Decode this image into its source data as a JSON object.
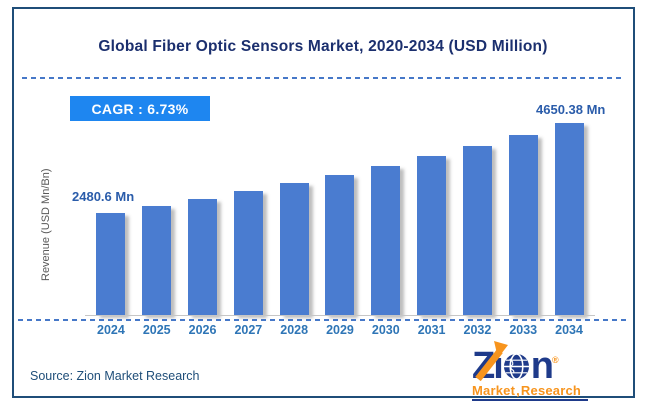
{
  "header": {
    "title": "Global Fiber Optic Sensors Market, 2020-2034 (USD Million)"
  },
  "badge": {
    "label": "CAGR : 6.73%"
  },
  "chart_data": {
    "type": "bar",
    "title": "Global Fiber Optic Sensors Market, 2020-2034 (USD Million)",
    "categories": [
      "2024",
      "2025",
      "2026",
      "2027",
      "2028",
      "2029",
      "2030",
      "2031",
      "2032",
      "2033",
      "2034"
    ],
    "values": [
      2480.6,
      2641.5,
      2812.8,
      2995.2,
      3189.4,
      3396.2,
      3616.5,
      3851.0,
      4100.7,
      4366.6,
      4650.38
    ],
    "value_labels": {
      "first": "2480.6 Mn",
      "last": "4650.38 Mn"
    },
    "cagr": "6.73%",
    "xlabel": "",
    "ylabel": "Revenue (USD Mn/Bn)",
    "ylim": [
      0,
      4650.38
    ],
    "grid": false,
    "legend": "none",
    "bar_color": "#4a7cd0"
  },
  "footer": {
    "source": "Source: Zion Market Research",
    "logo": {
      "letter_z": "Z",
      "letter_i": "i",
      "letter_n": "n",
      "registered": "®",
      "market": "Market",
      "research": "Research",
      "comma": ","
    }
  },
  "colors": {
    "border": "#1f4e79",
    "title_text": "#1b2f6e",
    "badge_bg": "#1e86f0",
    "badge_text": "#ffffff",
    "bar": "#4a7cd0",
    "dashed_line": "#4678c8",
    "year_label": "#2e75b6",
    "value_label": "#2a5caa",
    "axis_label": "#595959",
    "source_text": "#1f4e79",
    "logo_blue": "#1e3a8a",
    "logo_orange": "#f7941d"
  }
}
